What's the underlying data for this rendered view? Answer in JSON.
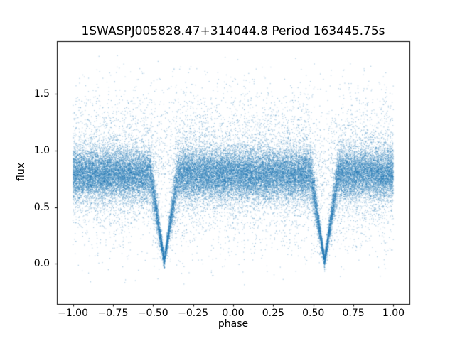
{
  "figure": {
    "background": "#ffffff",
    "axis_color": "#000000",
    "text_color": "#000000"
  },
  "chart_data": {
    "type": "scatter",
    "title": "1SWASPJ005828.47+314044.8 Period 163445.75s",
    "xlabel": "phase",
    "ylabel": "flux",
    "xlim": [
      -1.1,
      1.1
    ],
    "ylim": [
      -0.35,
      1.97
    ],
    "x_ticks": [
      -1.0,
      -0.75,
      -0.5,
      -0.25,
      0.0,
      0.25,
      0.5,
      0.75,
      1.0
    ],
    "x_tick_labels": [
      "−1.00",
      "−0.75",
      "−0.50",
      "−0.25",
      "0.00",
      "0.25",
      "0.50",
      "0.75",
      "1.00"
    ],
    "y_ticks": [
      0.0,
      0.5,
      1.0,
      1.5
    ],
    "y_tick_labels": [
      "0.0",
      "0.5",
      "1.0",
      "1.5"
    ],
    "grid": false,
    "legend": "none",
    "marker_color": "#1f77b4",
    "marker_alpha": 0.38,
    "marker_size_px": 1.2,
    "n_points": 45000,
    "seed": 7,
    "phase_range": [
      -1.0,
      1.0
    ],
    "baseline": {
      "mean_flux": 0.79,
      "core_sigma": 0.11,
      "core_fraction": 0.75,
      "tail_sigma": 0.3,
      "outlier_fraction": 0.045,
      "outlier_max": 1.85,
      "min_flux": -0.2
    },
    "eclipses": [
      {
        "phase_center": -0.43,
        "half_width": 0.085,
        "depth": 0.97
      },
      {
        "phase_center": 0.57,
        "half_width": 0.085,
        "depth": 0.97
      }
    ]
  }
}
